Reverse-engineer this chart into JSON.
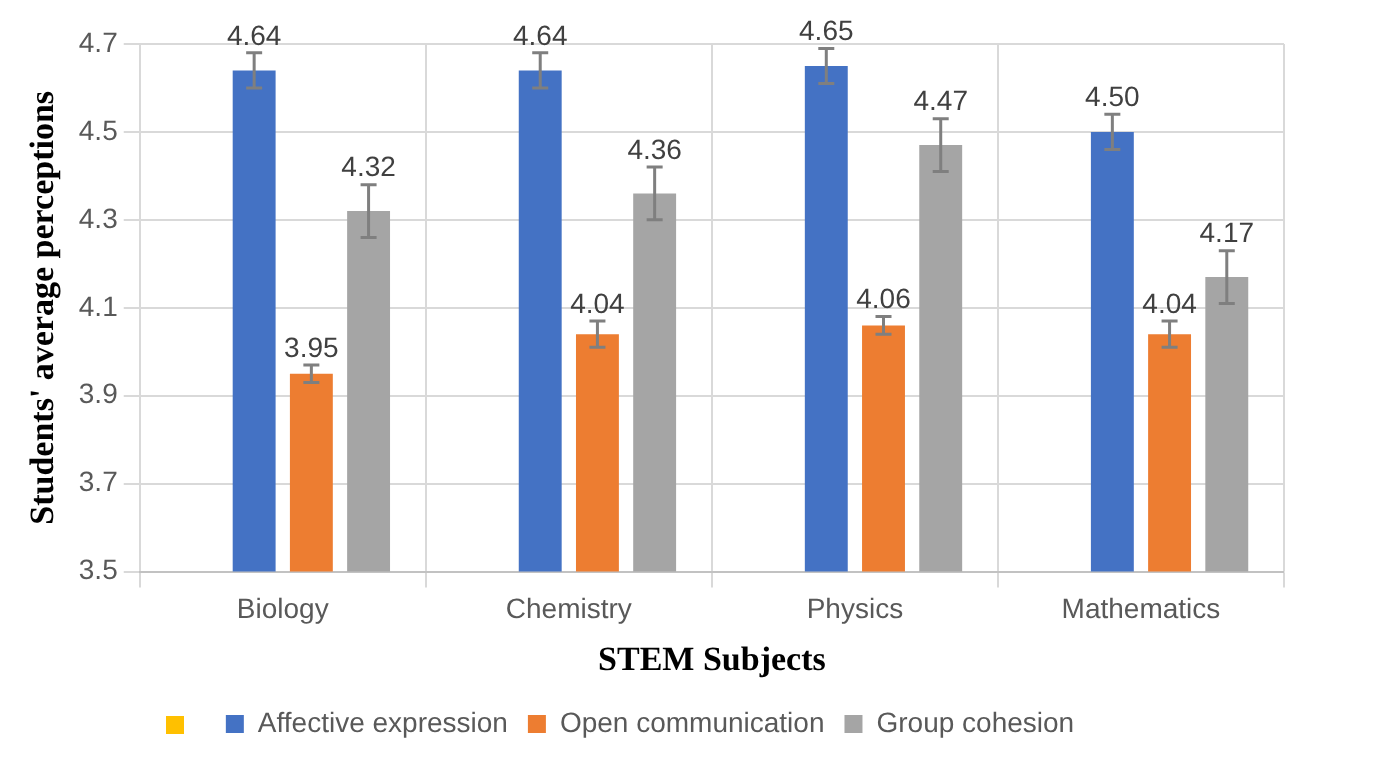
{
  "chart_data": {
    "type": "bar",
    "xlabel": "STEM Subjects",
    "ylabel": "Students' average perceptions",
    "categories": [
      "Biology",
      "Chemistry",
      "Physics",
      "Mathematics"
    ],
    "series": [
      {
        "color": "#ffc000",
        "values": [
          null,
          null,
          null,
          null
        ]
      },
      {
        "name": "Affective expression",
        "color": "#4472c4",
        "values": [
          4.64,
          4.64,
          4.65,
          4.5
        ],
        "value_labels": [
          "4.64",
          "4.64",
          "4.65",
          "4.50"
        ],
        "errors": [
          0.04,
          0.04,
          0.04,
          0.04
        ]
      },
      {
        "name": "Open communication",
        "color": "#ed7d31",
        "values": [
          3.95,
          4.04,
          4.06,
          4.04
        ],
        "value_labels": [
          "3.95",
          "4.04",
          "4.06",
          "4.04"
        ],
        "errors": [
          0.02,
          0.03,
          0.02,
          0.03
        ]
      },
      {
        "name": "Group cohesion",
        "color": "#a5a5a5",
        "values": [
          4.32,
          4.36,
          4.47,
          4.17
        ],
        "value_labels": [
          "4.32",
          "4.36",
          "4.47",
          "4.17"
        ],
        "errors": [
          0.06,
          0.06,
          0.06,
          0.06
        ]
      }
    ],
    "ylim": [
      3.5,
      4.7
    ],
    "yticks": [
      3.5,
      3.7,
      3.9,
      4.1,
      4.3,
      4.5,
      4.7
    ],
    "grid": true,
    "legend": "bottom"
  }
}
